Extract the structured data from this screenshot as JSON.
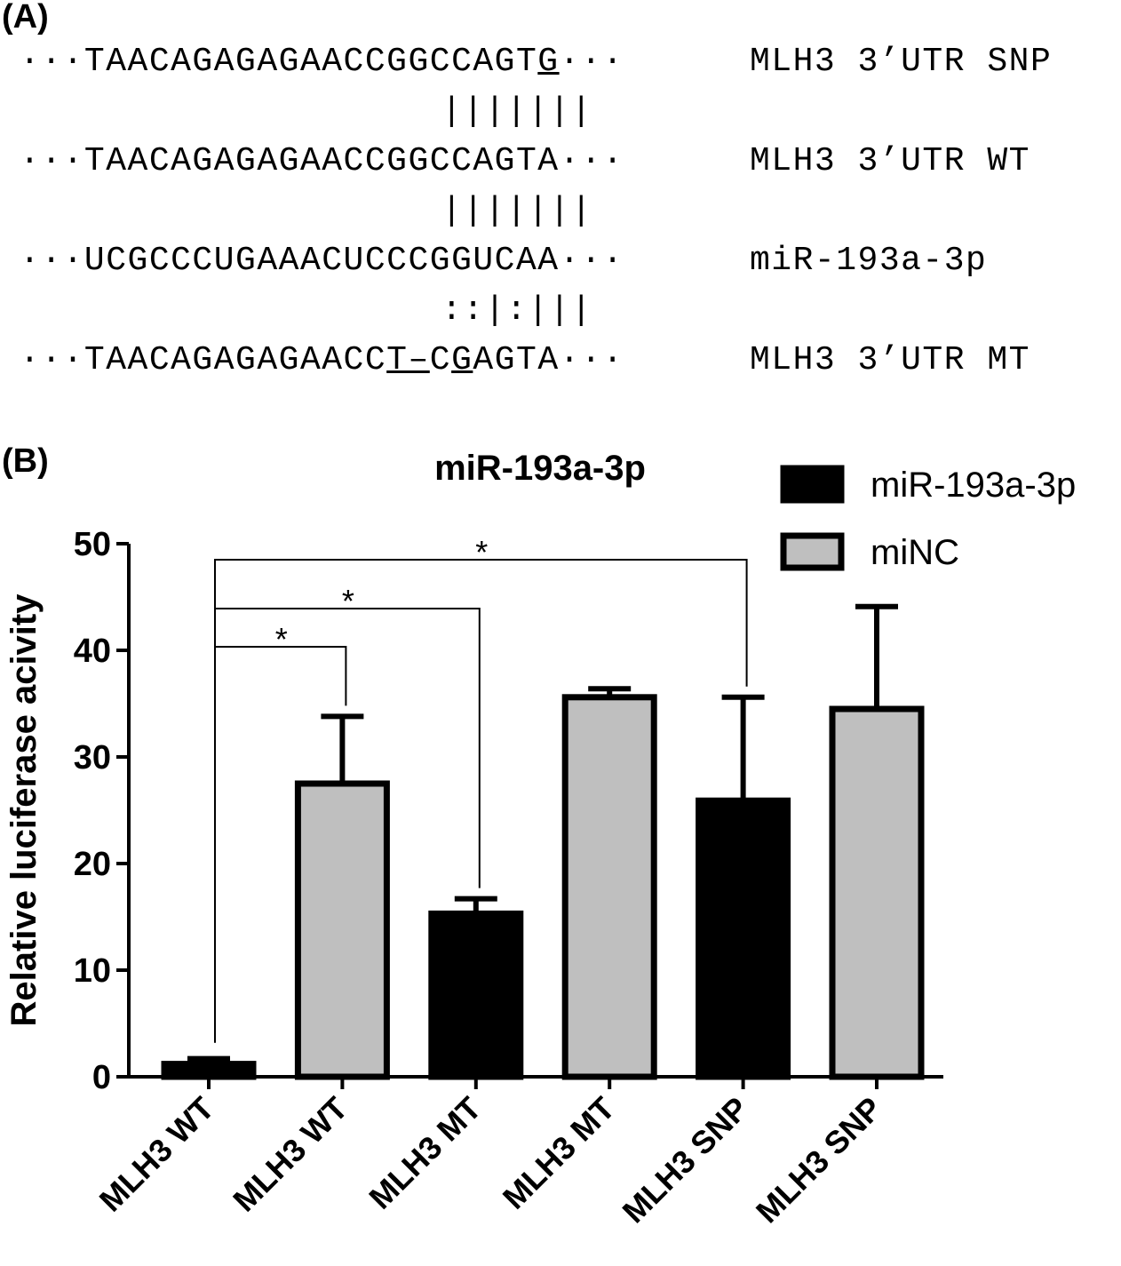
{
  "panel_a": {
    "label": "(A)",
    "rows": [
      {
        "prefix": "···TAACAGAGAGAACCGGCCAGT",
        "underlined": "G",
        "suffix": "···",
        "name": "MLH3 3’UTR SNP"
      },
      {
        "pairing": "|||||||"
      },
      {
        "prefix": "···TAACAGAGAGAACCGGCCAGTA···",
        "name": "MLH3 3’UTR WT"
      },
      {
        "pairing": "|||||||"
      },
      {
        "prefix": "···UCGCCCUGAAACUCCCGGUCAA···",
        "name": "miR-193a-3p"
      },
      {
        "pairing": "::|:|||"
      },
      {
        "prefix": "···TAACAGAGAGAACC",
        "underlined": "T–",
        "middle": "C",
        "underlined2": "G",
        "suffix": "AGTA···",
        "name": "MLH3 3’UTR MT"
      }
    ]
  },
  "panel_b": {
    "label": "(B)"
  },
  "chart_data": {
    "type": "bar",
    "title": "miR-193a-3p",
    "ylabel": "Relative luciferase acivity",
    "xlabel": "",
    "ylim": [
      0,
      50
    ],
    "yticks": [
      "0",
      "10",
      "20",
      "30",
      "40",
      "50"
    ],
    "categories": [
      "MLH3 WT",
      "MLH3 WT",
      "MLH3 MT",
      "MLH3 MT",
      "MLH3 SNP",
      "MLH3 SNP"
    ],
    "bars": [
      {
        "value": 1.2,
        "error": 0.5,
        "series": "miR-193a-3p"
      },
      {
        "value": 27.5,
        "error": 6.3,
        "series": "miNC"
      },
      {
        "value": 15.3,
        "error": 1.4,
        "series": "miR-193a-3p"
      },
      {
        "value": 35.6,
        "error": 0.8,
        "series": "miNC"
      },
      {
        "value": 25.9,
        "error": 9.7,
        "series": "miR-193a-3p"
      },
      {
        "value": 34.5,
        "error": 9.6,
        "series": "miNC"
      }
    ],
    "legend": [
      {
        "name": "miR-193a-3p",
        "color": "#000000"
      },
      {
        "name": "miNC",
        "color": "#bfbfbf"
      }
    ],
    "legend_position": "top-right",
    "significance": [
      {
        "from": 0,
        "to": 1,
        "label": "*"
      },
      {
        "from": 0,
        "to": 2,
        "label": "*"
      },
      {
        "from": 0,
        "to": 4,
        "label": "*"
      }
    ],
    "grid": false
  }
}
